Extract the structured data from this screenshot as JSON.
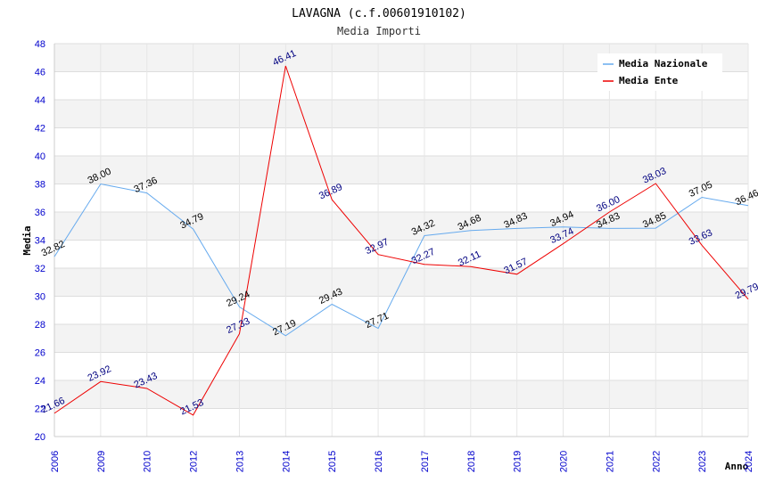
{
  "chart_data": {
    "type": "line",
    "title": "LAVAGNA (c.f.00601910102)",
    "subtitle": "Media Importi",
    "xlabel": "Anno",
    "ylabel": "Media",
    "ylim": [
      20,
      48
    ],
    "yticks": [
      20,
      22,
      24,
      26,
      28,
      30,
      32,
      34,
      36,
      38,
      40,
      42,
      44,
      46,
      48
    ],
    "categories": [
      "2006",
      "2009",
      "2010",
      "2012",
      "2013",
      "2014",
      "2015",
      "2016",
      "2017",
      "2018",
      "2019",
      "2020",
      "2021",
      "2022",
      "2023",
      "2024"
    ],
    "series": [
      {
        "name": "Media Nazionale",
        "color": "#66aaee",
        "values": [
          32.82,
          38.0,
          37.36,
          34.79,
          29.24,
          27.19,
          29.43,
          27.71,
          34.32,
          34.68,
          34.83,
          34.94,
          34.83,
          34.85,
          37.05,
          36.46
        ],
        "labels": [
          "32.82",
          "38.00",
          "37.36",
          "34.79",
          "29.24",
          "27.19",
          "29.43",
          "27.71",
          "34.32",
          "34.68",
          "34.83",
          "34.94",
          "34.83",
          "34.85",
          "37.05",
          "36.46"
        ]
      },
      {
        "name": "Media Ente",
        "color": "#ee0000",
        "values": [
          21.66,
          23.92,
          23.43,
          21.53,
          27.33,
          46.41,
          36.89,
          32.97,
          32.27,
          32.11,
          31.57,
          33.74,
          36.0,
          38.03,
          33.63,
          29.79
        ],
        "labels": [
          "21.66",
          "23.92",
          "23.43",
          "21.53",
          "27.33",
          "46.41",
          "36.89",
          "32.97",
          "32.27",
          "32.11",
          "31.57",
          "33.74",
          "36.00",
          "38.03",
          "33.63",
          "29.79"
        ]
      }
    ],
    "legend_position": "top-right",
    "grid": true
  }
}
